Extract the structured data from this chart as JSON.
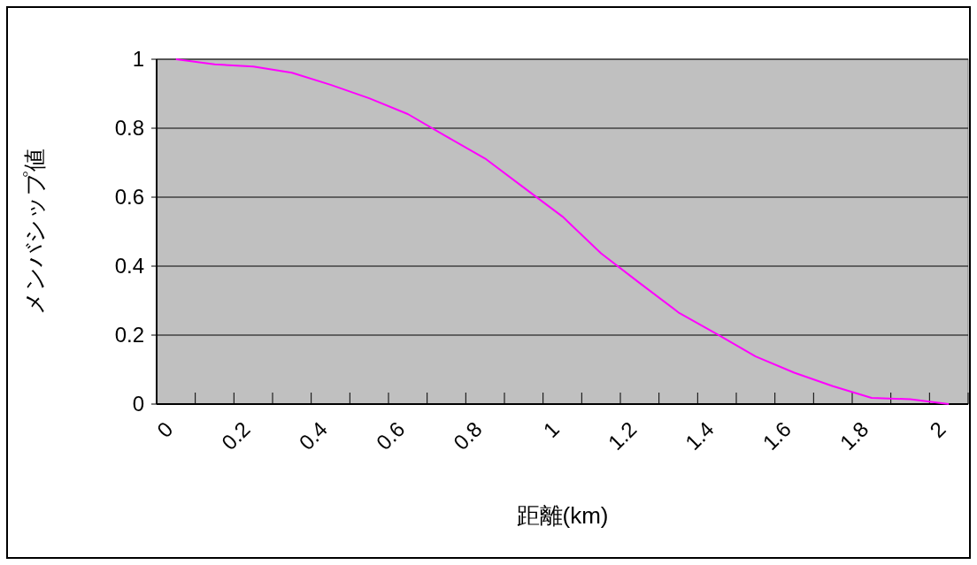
{
  "chart_data": {
    "type": "line",
    "xlabel": "距離(km)",
    "ylabel": "メンバシップ値",
    "categories": [
      "0",
      null,
      "0.2",
      null,
      "0.4",
      null,
      "0.6",
      null,
      "0.8",
      null,
      "1",
      null,
      "1.2",
      null,
      "1.4",
      null,
      "1.6",
      null,
      "1.8",
      null,
      "2"
    ],
    "series": [
      {
        "color": "#ff00ff",
        "values": [
          1.0,
          0.985,
          0.979,
          0.961,
          0.926,
          0.887,
          0.841,
          0.776,
          0.712,
          0.628,
          0.544,
          0.437,
          0.351,
          0.266,
          0.203,
          0.138,
          0.091,
          0.052,
          0.018,
          0.014,
          0.0
        ]
      }
    ],
    "ylim": [
      0,
      1
    ],
    "yticks": [
      0,
      0.2,
      0.4,
      0.6,
      0.8,
      1
    ],
    "grid": "y"
  }
}
